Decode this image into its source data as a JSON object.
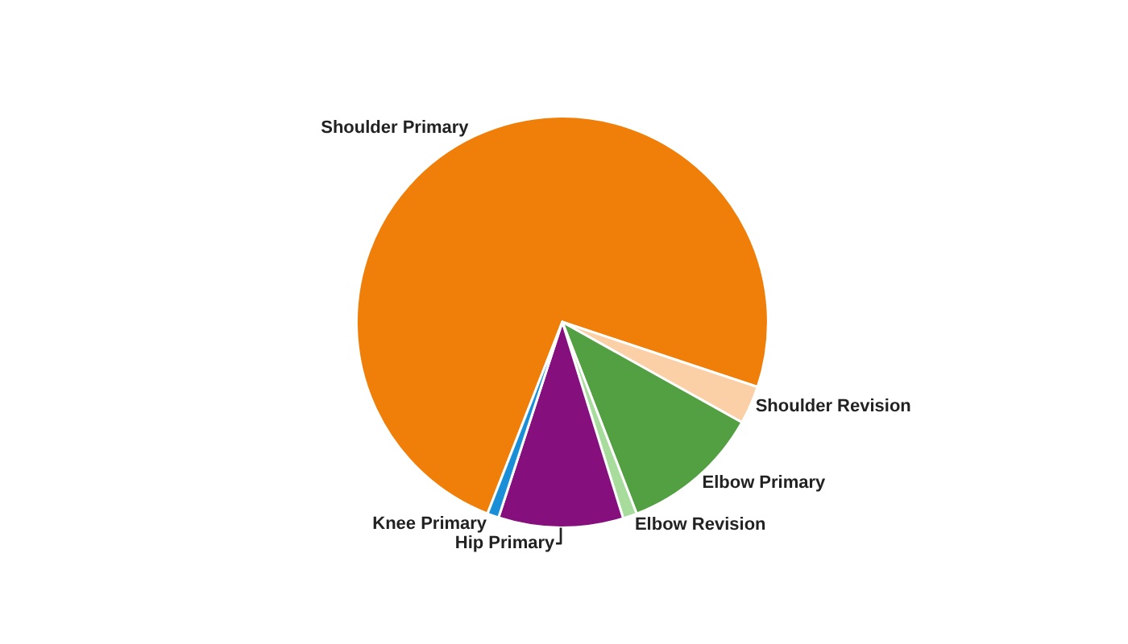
{
  "chart_data": {
    "type": "pie",
    "categories": [
      "Shoulder Primary",
      "Shoulder Revision",
      "Elbow Primary",
      "Elbow Revision",
      "Hip Primary",
      "Knee Primary"
    ],
    "values": [
      74.2,
      3.0,
      11.0,
      1.1,
      9.8,
      0.9
    ],
    "colors": [
      "#f07f09",
      "#fbd0a6",
      "#53a043",
      "#a8dc9c",
      "#85107d",
      "#1a8fd8"
    ]
  }
}
